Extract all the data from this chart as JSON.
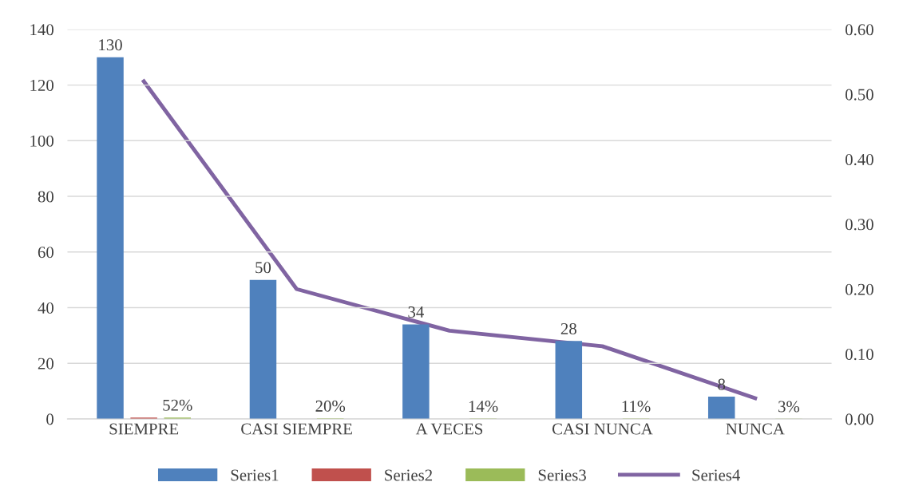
{
  "chart_data": {
    "type": "bar",
    "categories": [
      "SIEMPRE",
      "CASI SIEMPRE",
      "A VECES",
      "CASI NUNCA",
      "NUNCA"
    ],
    "series": [
      {
        "name": "Series1",
        "color": "#4f81bd",
        "values": [
          130,
          50,
          34,
          28,
          8
        ],
        "value_labels": [
          "130",
          "50",
          "34",
          "28",
          "8"
        ]
      },
      {
        "name": "Series2",
        "color": "#c0504d",
        "values": [
          0.5,
          null,
          null,
          null,
          null
        ]
      },
      {
        "name": "Series3",
        "color": "#9bbb59",
        "values": [
          0.52,
          0.2,
          0.14,
          0.11,
          0.03
        ],
        "value_labels": [
          "52%",
          "20%",
          "14%",
          "11%",
          "3%"
        ]
      },
      {
        "name": "Series4",
        "color": "#8064a2",
        "type": "line",
        "axis": "y2",
        "values": [
          0.52,
          0.2,
          0.136,
          0.112,
          0.032
        ]
      }
    ],
    "ylim": [
      0,
      140
    ],
    "yticks": [
      0,
      20,
      40,
      60,
      80,
      100,
      120,
      140
    ],
    "y2lim": [
      0,
      0.6
    ],
    "y2ticks": [
      {
        "value": 0,
        "label": "0.00"
      },
      {
        "value": 0.1,
        "label": "0.10"
      },
      {
        "value": 0.2,
        "label": "0.20"
      },
      {
        "value": 0.3,
        "label": "0.30"
      },
      {
        "value": 0.4,
        "label": "0.40"
      },
      {
        "value": 0.5,
        "label": "0.50"
      },
      {
        "value": 0.6,
        "label": "0.60"
      }
    ],
    "grid": "y",
    "legend": "bottom",
    "marker": "none",
    "line_style": "solid"
  }
}
